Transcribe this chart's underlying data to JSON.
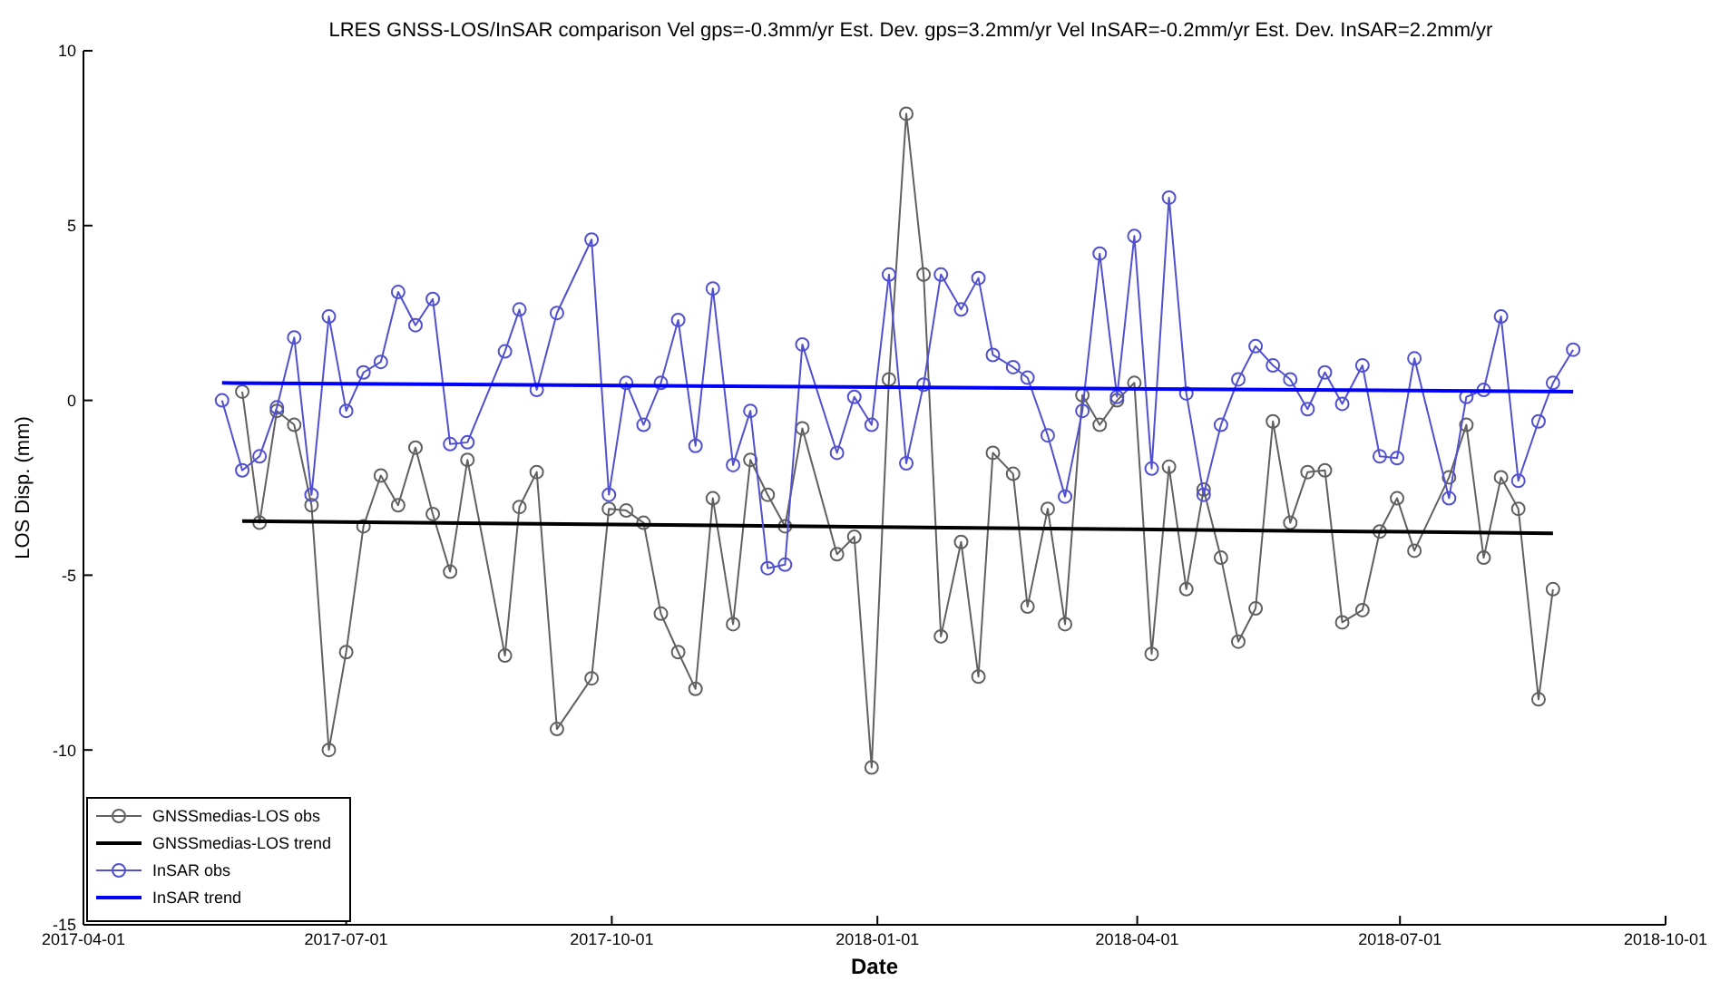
{
  "chart_data": {
    "type": "line",
    "title": "LRES GNSS-LOS/InSAR comparison    Vel gps=-0.3mm/yr   Est. Dev. gps=3.2mm/yr   Vel InSAR=-0.2mm/yr   Est. Dev. InSAR=2.2mm/yr",
    "xlabel": "Date",
    "ylabel": "LOS Disp. (mm)",
    "xlim": [
      "2017-04-01",
      "2018-10-01"
    ],
    "xticks": [
      "2017-04-01",
      "2017-07-01",
      "2017-10-01",
      "2018-01-01",
      "2018-04-01",
      "2018-07-01",
      "2018-10-01"
    ],
    "ylim": [
      -15,
      10
    ],
    "yticks": [
      -15,
      -10,
      -5,
      0,
      5,
      10
    ],
    "grid": false,
    "legend": "bottom left",
    "series": [
      {
        "name": "GNSSmedias-LOS obs",
        "color": "#606060",
        "marker": "circle",
        "x": [
          "2017-05-26",
          "2017-06-01",
          "2017-06-07",
          "2017-06-13",
          "2017-06-19",
          "2017-06-25",
          "2017-07-01",
          "2017-07-07",
          "2017-07-13",
          "2017-07-19",
          "2017-07-25",
          "2017-07-31",
          "2017-08-06",
          "2017-08-12",
          "2017-08-25",
          "2017-08-30",
          "2017-09-05",
          "2017-09-12",
          "2017-09-24",
          "2017-09-30",
          "2017-10-06",
          "2017-10-12",
          "2017-10-18",
          "2017-10-24",
          "2017-10-30",
          "2017-11-05",
          "2017-11-12",
          "2017-11-18",
          "2017-11-24",
          "2017-11-30",
          "2017-12-06",
          "2017-12-18",
          "2017-12-24",
          "2017-12-30",
          "2018-01-05",
          "2018-01-11",
          "2018-01-17",
          "2018-01-23",
          "2018-01-30",
          "2018-02-05",
          "2018-02-10",
          "2018-02-17",
          "2018-02-22",
          "2018-03-01",
          "2018-03-07",
          "2018-03-13",
          "2018-03-19",
          "2018-03-25",
          "2018-03-31",
          "2018-04-06",
          "2018-04-12",
          "2018-04-18",
          "2018-04-24",
          "2018-04-30",
          "2018-05-06",
          "2018-05-12",
          "2018-05-18",
          "2018-05-24",
          "2018-05-30",
          "2018-06-05",
          "2018-06-11",
          "2018-06-18",
          "2018-06-24",
          "2018-06-30",
          "2018-07-06",
          "2018-07-18",
          "2018-07-24",
          "2018-07-30",
          "2018-08-05",
          "2018-08-11",
          "2018-08-18",
          "2018-08-23"
        ],
        "values": [
          0.25,
          -3.5,
          -0.3,
          -0.7,
          -3.0,
          -10.0,
          -7.2,
          -3.6,
          -2.15,
          -3.0,
          -1.35,
          -3.25,
          -4.9,
          -1.7,
          -7.3,
          -3.05,
          -2.05,
          -9.4,
          -7.95,
          -3.1,
          -3.15,
          -3.5,
          -6.1,
          -7.2,
          -8.25,
          -2.8,
          -6.4,
          -1.7,
          -2.7,
          -3.6,
          -0.8,
          -4.4,
          -3.9,
          -10.5,
          0.6,
          8.2,
          3.6,
          -6.75,
          -4.05,
          -7.9,
          -1.5,
          -2.1,
          -5.9,
          -3.1,
          -6.4,
          0.15,
          -0.7,
          0.0,
          0.5,
          -7.25,
          -1.9,
          -5.4,
          -2.55,
          -4.5,
          -6.9,
          -5.95,
          -0.6,
          -3.5,
          -2.05,
          -2.0,
          -6.35,
          -6.0,
          -3.75,
          -2.8,
          -4.3,
          -2.2,
          -0.7,
          -4.5,
          -2.2,
          -3.1,
          -8.55,
          -5.4
        ]
      },
      {
        "name": "GNSSmedias-LOS trend",
        "color": "#000000",
        "marker": "none",
        "x": [
          "2017-05-26",
          "2018-08-23"
        ],
        "values": [
          -3.45,
          -3.8
        ]
      },
      {
        "name": "InSAR obs",
        "color": "#5050d0",
        "marker": "circle",
        "x": [
          "2017-05-19",
          "2017-05-26",
          "2017-06-01",
          "2017-06-07",
          "2017-06-13",
          "2017-06-19",
          "2017-06-25",
          "2017-07-01",
          "2017-07-07",
          "2017-07-13",
          "2017-07-19",
          "2017-07-25",
          "2017-07-31",
          "2017-08-06",
          "2017-08-12",
          "2017-08-25",
          "2017-08-30",
          "2017-09-05",
          "2017-09-12",
          "2017-09-24",
          "2017-09-30",
          "2017-10-06",
          "2017-10-12",
          "2017-10-18",
          "2017-10-24",
          "2017-10-30",
          "2017-11-05",
          "2017-11-12",
          "2017-11-18",
          "2017-11-24",
          "2017-11-30",
          "2017-12-06",
          "2017-12-18",
          "2017-12-24",
          "2017-12-30",
          "2018-01-05",
          "2018-01-11",
          "2018-01-17",
          "2018-01-23",
          "2018-01-30",
          "2018-02-05",
          "2018-02-10",
          "2018-02-17",
          "2018-02-22",
          "2018-03-01",
          "2018-03-07",
          "2018-03-13",
          "2018-03-19",
          "2018-03-25",
          "2018-03-31",
          "2018-04-06",
          "2018-04-12",
          "2018-04-18",
          "2018-04-24",
          "2018-04-30",
          "2018-05-06",
          "2018-05-12",
          "2018-05-18",
          "2018-05-24",
          "2018-05-30",
          "2018-06-05",
          "2018-06-11",
          "2018-06-18",
          "2018-06-24",
          "2018-06-30",
          "2018-07-06",
          "2018-07-18",
          "2018-07-24",
          "2018-07-30",
          "2018-08-05",
          "2018-08-11",
          "2018-08-18",
          "2018-08-23",
          "2018-08-30"
        ],
        "values": [
          0.0,
          -2.0,
          -1.6,
          -0.2,
          1.8,
          -2.7,
          2.4,
          -0.3,
          0.8,
          1.1,
          3.1,
          2.15,
          2.9,
          -1.25,
          -1.2,
          1.4,
          2.6,
          0.3,
          2.5,
          4.6,
          -2.7,
          0.5,
          -0.7,
          0.5,
          2.3,
          -1.3,
          3.2,
          -1.85,
          -0.3,
          -4.8,
          -4.7,
          1.6,
          -1.5,
          0.1,
          -0.7,
          3.6,
          -1.8,
          0.45,
          3.6,
          2.6,
          3.5,
          1.3,
          0.95,
          0.65,
          -1.0,
          -2.75,
          -0.3,
          4.2,
          0.1,
          4.7,
          -1.95,
          5.8,
          0.2,
          -2.7,
          -0.7,
          0.6,
          1.55,
          1.0,
          0.6,
          -0.25,
          0.8,
          -0.1,
          1.0,
          -1.6,
          -1.65,
          1.2,
          -2.8,
          0.1,
          0.3,
          2.4,
          -2.3,
          -0.6,
          0.5,
          1.45
        ]
      },
      {
        "name": "InSAR trend",
        "color": "#0000ff",
        "marker": "none",
        "x": [
          "2017-05-19",
          "2018-08-30"
        ],
        "values": [
          0.5,
          0.25
        ]
      }
    ]
  }
}
